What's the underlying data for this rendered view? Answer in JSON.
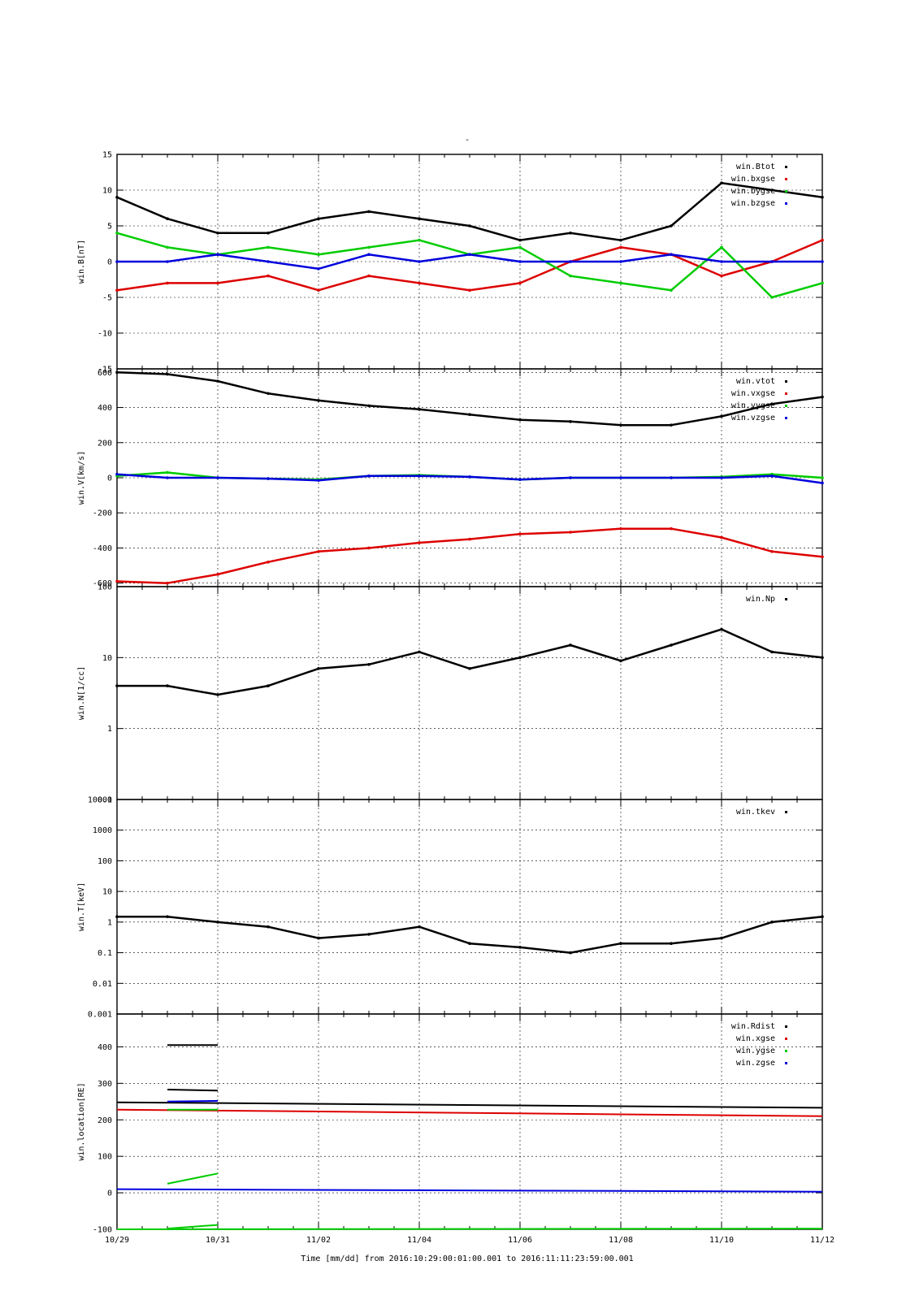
{
  "title": "-",
  "xlabel": "Time [mm/dd]  from 2016:10:29:00:01:00.001  to  2016:11:11:23:59:00.001",
  "x_ticks": [
    "10/29",
    "10/31",
    "11/02",
    "11/04",
    "11/06",
    "11/08",
    "11/10",
    "11/12"
  ],
  "colors": {
    "black": "#000000",
    "red": "#dd0000",
    "green": "#00cc00",
    "blue": "#0000dd"
  },
  "chart_data": [
    {
      "type": "scatter",
      "ylabel": "win.B[nT]",
      "xlim": [
        "10/29",
        "11/12"
      ],
      "ylim": [
        -15,
        15
      ],
      "yscale": "linear",
      "y_ticks": [
        "15",
        "10",
        "5",
        "0",
        "-5",
        "-10",
        "-15"
      ],
      "grid": true,
      "legend_position": "top-right",
      "series": [
        {
          "name": "win.Btot",
          "color": "#000000",
          "points": [
            [
              "10/29",
              9
            ],
            [
              "10/30",
              6
            ],
            [
              "10/31",
              4
            ],
            [
              "11/01",
              4
            ],
            [
              "11/02",
              6
            ],
            [
              "11/03",
              7
            ],
            [
              "11/04",
              6
            ],
            [
              "11/05",
              5
            ],
            [
              "11/06",
              3
            ],
            [
              "11/07",
              4
            ],
            [
              "11/08",
              3
            ],
            [
              "11/09",
              5
            ],
            [
              "11/10",
              11
            ],
            [
              "11/11",
              10
            ],
            [
              "11/12",
              9
            ]
          ]
        },
        {
          "name": "win.bxgse",
          "color": "#dd0000",
          "points": [
            [
              "10/29",
              -4
            ],
            [
              "10/30",
              -3
            ],
            [
              "10/31",
              -3
            ],
            [
              "11/01",
              -2
            ],
            [
              "11/02",
              -4
            ],
            [
              "11/03",
              -2
            ],
            [
              "11/04",
              -3
            ],
            [
              "11/05",
              -4
            ],
            [
              "11/06",
              -3
            ],
            [
              "11/07",
              0
            ],
            [
              "11/08",
              2
            ],
            [
              "11/09",
              1
            ],
            [
              "11/10",
              -2
            ],
            [
              "11/11",
              0
            ],
            [
              "11/12",
              3
            ]
          ]
        },
        {
          "name": "win.bygse",
          "color": "#00cc00",
          "points": [
            [
              "10/29",
              4
            ],
            [
              "10/30",
              2
            ],
            [
              "10/31",
              1
            ],
            [
              "11/01",
              2
            ],
            [
              "11/02",
              1
            ],
            [
              "11/03",
              2
            ],
            [
              "11/04",
              3
            ],
            [
              "11/05",
              1
            ],
            [
              "11/06",
              2
            ],
            [
              "11/07",
              -2
            ],
            [
              "11/08",
              -3
            ],
            [
              "11/09",
              -4
            ],
            [
              "11/10",
              2
            ],
            [
              "11/11",
              -5
            ],
            [
              "11/12",
              -3
            ]
          ]
        },
        {
          "name": "win.bzgse",
          "color": "#0000dd",
          "points": [
            [
              "10/29",
              0
            ],
            [
              "10/30",
              0
            ],
            [
              "10/31",
              1
            ],
            [
              "11/01",
              0
            ],
            [
              "11/02",
              -1
            ],
            [
              "11/03",
              1
            ],
            [
              "11/04",
              0
            ],
            [
              "11/05",
              1
            ],
            [
              "11/06",
              0
            ],
            [
              "11/07",
              0
            ],
            [
              "11/08",
              0
            ],
            [
              "11/09",
              1
            ],
            [
              "11/10",
              0
            ],
            [
              "11/11",
              0
            ],
            [
              "11/12",
              0
            ]
          ]
        }
      ]
    },
    {
      "type": "scatter",
      "ylabel": "win.V[km/s]",
      "xlim": [
        "10/29",
        "11/12"
      ],
      "ylim": [
        -620,
        620
      ],
      "yscale": "linear",
      "y_ticks": [
        "600",
        "400",
        "200",
        "0",
        "-200",
        "-400",
        "-600"
      ],
      "grid": true,
      "legend_position": "top-right",
      "series": [
        {
          "name": "win.vtot",
          "color": "#000000",
          "points": [
            [
              "10/29",
              600
            ],
            [
              "10/30",
              590
            ],
            [
              "10/31",
              550
            ],
            [
              "11/01",
              480
            ],
            [
              "11/02",
              440
            ],
            [
              "11/03",
              410
            ],
            [
              "11/04",
              390
            ],
            [
              "11/05",
              360
            ],
            [
              "11/06",
              330
            ],
            [
              "11/07",
              320
            ],
            [
              "11/08",
              300
            ],
            [
              "11/09",
              300
            ],
            [
              "11/10",
              350
            ],
            [
              "11/11",
              420
            ],
            [
              "11/12",
              460
            ]
          ]
        },
        {
          "name": "win.vxgse",
          "color": "#dd0000",
          "points": [
            [
              "10/29",
              -590
            ],
            [
              "10/30",
              -600
            ],
            [
              "10/31",
              -550
            ],
            [
              "11/01",
              -480
            ],
            [
              "11/02",
              -420
            ],
            [
              "11/03",
              -400
            ],
            [
              "11/04",
              -370
            ],
            [
              "11/05",
              -350
            ],
            [
              "11/06",
              -320
            ],
            [
              "11/07",
              -310
            ],
            [
              "11/08",
              -290
            ],
            [
              "11/09",
              -290
            ],
            [
              "11/10",
              -340
            ],
            [
              "11/11",
              -420
            ],
            [
              "11/12",
              -450
            ]
          ]
        },
        {
          "name": "win.vygse",
          "color": "#00cc00",
          "points": [
            [
              "10/29",
              10
            ],
            [
              "10/30",
              30
            ],
            [
              "10/31",
              0
            ],
            [
              "11/01",
              -5
            ],
            [
              "11/02",
              -10
            ],
            [
              "11/03",
              10
            ],
            [
              "11/04",
              15
            ],
            [
              "11/05",
              5
            ],
            [
              "11/06",
              -10
            ],
            [
              "11/07",
              0
            ],
            [
              "11/08",
              0
            ],
            [
              "11/09",
              0
            ],
            [
              "11/10",
              5
            ],
            [
              "11/11",
              20
            ],
            [
              "11/12",
              0
            ]
          ]
        },
        {
          "name": "win.vzgse",
          "color": "#0000dd",
          "points": [
            [
              "10/29",
              20
            ],
            [
              "10/30",
              0
            ],
            [
              "10/31",
              0
            ],
            [
              "11/01",
              -5
            ],
            [
              "11/02",
              -15
            ],
            [
              "11/03",
              10
            ],
            [
              "11/04",
              10
            ],
            [
              "11/05",
              5
            ],
            [
              "11/06",
              -10
            ],
            [
              "11/07",
              0
            ],
            [
              "11/08",
              0
            ],
            [
              "11/09",
              0
            ],
            [
              "11/10",
              0
            ],
            [
              "11/11",
              10
            ],
            [
              "11/12",
              -30
            ]
          ]
        }
      ]
    },
    {
      "type": "scatter",
      "ylabel": "win.N[1/cc]",
      "xlim": [
        "10/29",
        "11/12"
      ],
      "ylim": [
        0.1,
        100
      ],
      "yscale": "log",
      "y_ticks": [
        "100",
        "10",
        "1",
        "0.1"
      ],
      "grid": true,
      "legend_position": "top-right",
      "series": [
        {
          "name": "win.Np",
          "color": "#000000",
          "points": [
            [
              "10/29",
              4
            ],
            [
              "10/30",
              4
            ],
            [
              "10/31",
              3
            ],
            [
              "11/01",
              4
            ],
            [
              "11/02",
              7
            ],
            [
              "11/03",
              8
            ],
            [
              "11/04",
              12
            ],
            [
              "11/05",
              7
            ],
            [
              "11/06",
              10
            ],
            [
              "11/07",
              15
            ],
            [
              "11/08",
              9
            ],
            [
              "11/09",
              15
            ],
            [
              "11/10",
              25
            ],
            [
              "11/11",
              12
            ],
            [
              "11/12",
              10
            ]
          ]
        }
      ]
    },
    {
      "type": "scatter",
      "ylabel": "win.T[keV]",
      "xlim": [
        "10/29",
        "11/12"
      ],
      "ylim": [
        0.001,
        10000
      ],
      "yscale": "log",
      "y_ticks": [
        "10000",
        "1000",
        "100",
        "10",
        "1",
        "0.1",
        "0.01",
        "0.001"
      ],
      "grid": true,
      "legend_position": "top-right",
      "series": [
        {
          "name": "win.tkev",
          "color": "#000000",
          "points": [
            [
              "10/29",
              1.5
            ],
            [
              "10/30",
              1.5
            ],
            [
              "10/31",
              1
            ],
            [
              "11/01",
              0.7
            ],
            [
              "11/02",
              0.3
            ],
            [
              "11/03",
              0.4
            ],
            [
              "11/04",
              0.7
            ],
            [
              "11/05",
              0.2
            ],
            [
              "11/06",
              0.15
            ],
            [
              "11/07",
              0.1
            ],
            [
              "11/08",
              0.2
            ],
            [
              "11/09",
              0.2
            ],
            [
              "11/10",
              0.3
            ],
            [
              "11/11",
              1
            ],
            [
              "11/12",
              1.5
            ]
          ]
        }
      ]
    },
    {
      "type": "line",
      "ylabel": "win.location[RE]",
      "xlim": [
        "10/29",
        "11/12"
      ],
      "ylim": [
        -100,
        490
      ],
      "yscale": "linear",
      "y_ticks": [
        "400",
        "300",
        "200",
        "100",
        "0",
        "-100"
      ],
      "grid": true,
      "legend_position": "top-right",
      "series": [
        {
          "name": "win.Rdist",
          "color": "#000000",
          "points": [
            [
              "10/29",
              248
            ],
            [
              "11/12",
              233
            ]
          ]
        },
        {
          "name": "win.xgse",
          "color": "#dd0000",
          "points": [
            [
              "10/29",
              228
            ],
            [
              "11/12",
              210
            ]
          ]
        },
        {
          "name": "win.ygse",
          "color": "#00cc00",
          "points": [
            [
              "10/29",
              -100
            ],
            [
              "11/12",
              -98
            ]
          ]
        },
        {
          "name": "win.zgse",
          "color": "#0000dd",
          "points": [
            [
              "10/29",
              10
            ],
            [
              "11/12",
              3
            ]
          ]
        }
      ],
      "gap_segments": [
        {
          "color": "#000000",
          "points": [
            [
              "10/30",
              405
            ],
            [
              "10/31",
              405
            ]
          ]
        },
        {
          "color": "#000000",
          "points": [
            [
              "10/30",
              283
            ],
            [
              "10/31",
              280
            ]
          ]
        },
        {
          "color": "#0000dd",
          "points": [
            [
              "10/30",
              250
            ],
            [
              "10/31",
              252
            ]
          ]
        },
        {
          "color": "#00cc00",
          "points": [
            [
              "10/30",
              228
            ],
            [
              "10/31",
              228
            ]
          ]
        },
        {
          "color": "#00cc00",
          "points": [
            [
              "10/30",
              25
            ],
            [
              "10/31",
              53
            ]
          ]
        },
        {
          "color": "#00cc00",
          "points": [
            [
              "10/30",
              -98
            ],
            [
              "10/31",
              -88
            ]
          ]
        }
      ]
    }
  ]
}
